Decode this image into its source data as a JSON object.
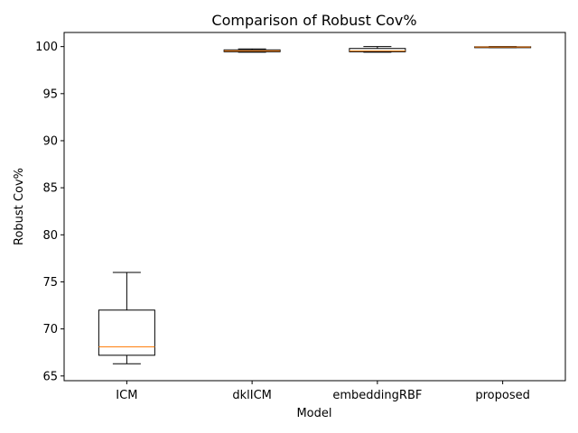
{
  "chart_data": {
    "type": "box",
    "title": "Comparison of Robust Cov%",
    "xlabel": "Model",
    "ylabel": "Robust Cov%",
    "ylim": [
      64.5,
      101.5
    ],
    "yticks": [
      65,
      70,
      75,
      80,
      85,
      90,
      95,
      100
    ],
    "categories": [
      "ICM",
      "dklICM",
      "embeddingRBF",
      "proposed"
    ],
    "boxes": [
      {
        "whisker_low": 66.3,
        "q1": 67.2,
        "median": 68.1,
        "q3": 72.0,
        "whisker_high": 76.0
      },
      {
        "whisker_low": 99.4,
        "q1": 99.45,
        "median": 99.55,
        "q3": 99.65,
        "whisker_high": 99.75
      },
      {
        "whisker_low": 99.4,
        "q1": 99.45,
        "median": 99.55,
        "q3": 99.8,
        "whisker_high": 100.0
      },
      {
        "whisker_low": 99.9,
        "q1": 99.92,
        "median": 99.95,
        "q3": 99.98,
        "whisker_high": 100.0
      }
    ],
    "colors": {
      "box": "#000000",
      "median": "#ff7f0e"
    },
    "grid": false
  }
}
